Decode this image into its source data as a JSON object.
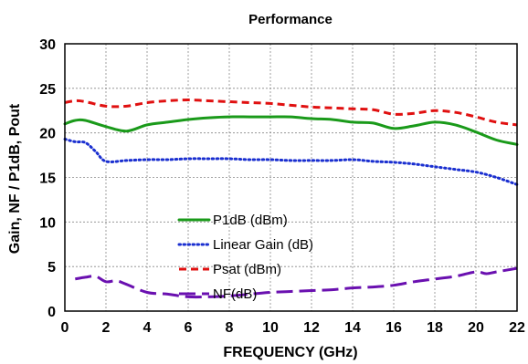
{
  "chart_data": {
    "type": "line",
    "title": "Performance",
    "xlabel": "FREQUENCY (GHz)",
    "ylabel": "Gain, NF / P1dB, Pout",
    "xlim": [
      0,
      22
    ],
    "ylim": [
      0,
      30
    ],
    "xticks": [
      "0",
      "2",
      "4",
      "6",
      "8",
      "10",
      "12",
      "14",
      "16",
      "18",
      "20",
      "22"
    ],
    "yticks": [
      "0",
      "5",
      "10",
      "15",
      "20",
      "25",
      "30"
    ],
    "grid": true,
    "legend_position": "center-left",
    "series": [
      {
        "name": "P1dB (dBm)",
        "color": "#1a9a1a",
        "dash": "solid",
        "x": [
          0,
          0.5,
          1,
          2,
          3,
          4,
          5,
          6,
          7,
          8,
          9,
          10,
          11,
          12,
          13,
          14,
          15,
          16,
          17,
          18,
          19,
          20,
          21,
          22
        ],
        "y": [
          21.0,
          21.4,
          21.4,
          20.7,
          20.2,
          20.9,
          21.2,
          21.5,
          21.7,
          21.8,
          21.8,
          21.8,
          21.8,
          21.6,
          21.5,
          21.2,
          21.1,
          20.5,
          20.8,
          21.2,
          20.9,
          20.1,
          19.2,
          18.7
        ]
      },
      {
        "name": "Linear Gain (dB)",
        "color": "#1a2fd0",
        "dash": "dotted",
        "x": [
          0,
          0.5,
          1,
          1.5,
          2,
          3,
          4,
          5,
          6,
          7,
          8,
          9,
          10,
          11,
          12,
          13,
          14,
          15,
          16,
          17,
          18,
          19,
          20,
          21,
          22
        ],
        "y": [
          19.3,
          19.0,
          18.9,
          17.9,
          16.8,
          16.9,
          17.0,
          17.0,
          17.1,
          17.1,
          17.1,
          17.0,
          17.0,
          16.9,
          16.9,
          16.9,
          17.0,
          16.8,
          16.7,
          16.5,
          16.2,
          15.9,
          15.6,
          15.0,
          14.2
        ]
      },
      {
        "name": "Psat (dBm)",
        "color": "#e01010",
        "dash": "dashed",
        "x": [
          0,
          0.5,
          1,
          2,
          3,
          4,
          5,
          6,
          7,
          8,
          9,
          10,
          11,
          12,
          13,
          14,
          15,
          16,
          17,
          18,
          19,
          20,
          21,
          22
        ],
        "y": [
          23.4,
          23.6,
          23.5,
          23.0,
          23.0,
          23.4,
          23.6,
          23.7,
          23.6,
          23.5,
          23.4,
          23.3,
          23.1,
          22.9,
          22.8,
          22.7,
          22.6,
          22.1,
          22.2,
          22.5,
          22.3,
          21.8,
          21.2,
          20.9
        ]
      },
      {
        "name": "NF(dB)",
        "color": "#6a10b0",
        "dash": "longdash",
        "x": [
          0.5,
          1,
          1.5,
          2,
          2.5,
          3,
          4,
          5,
          6,
          7,
          8,
          9,
          10,
          11,
          12,
          13,
          14,
          15,
          16,
          17,
          18,
          19,
          20,
          20.5,
          21,
          22
        ],
        "y": [
          3.6,
          3.8,
          3.9,
          3.3,
          3.4,
          3.0,
          2.1,
          1.9,
          1.6,
          1.6,
          1.7,
          1.9,
          2.1,
          2.2,
          2.3,
          2.4,
          2.6,
          2.7,
          2.9,
          3.3,
          3.6,
          3.9,
          4.4,
          4.2,
          4.4,
          4.8
        ]
      }
    ]
  }
}
